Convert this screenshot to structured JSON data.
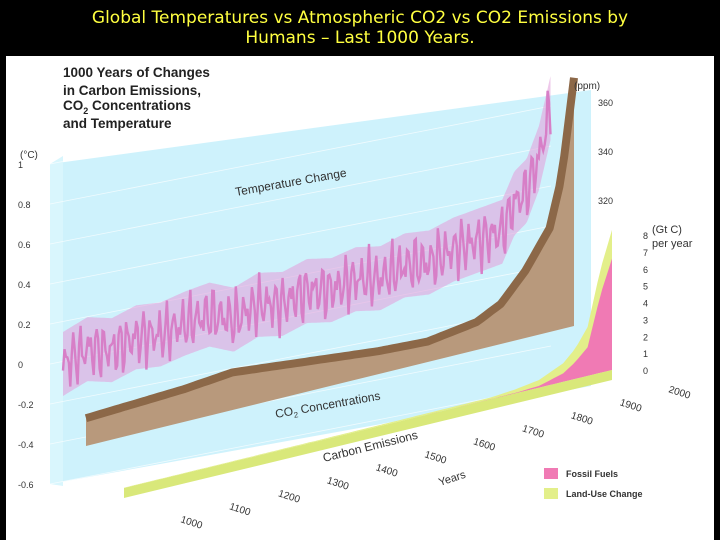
{
  "header": {
    "title_line1": "Global Temperatures vs Atmospheric CO2 vs CO2 Emissions by",
    "title_line2": "Humans – Last 1000 Years."
  },
  "colors": {
    "header_bg": "#000000",
    "header_text": "#ffff40",
    "temperature": "#d77fc7",
    "co2_top": "#8c6848",
    "co2_face": "#b8997c",
    "emissions_land": "#e3ef8a",
    "emissions_fossil": "#f07ab4",
    "temp_panel": "#c6f0fb"
  },
  "chart_data": {
    "type": "area",
    "title_lines": [
      "1000 Years of Changes",
      "in Carbon Emissions,",
      "CO2 Concentrations",
      "and Temperature"
    ],
    "series_labels": {
      "temperature": "Temperature Change",
      "co2": "CO2 Concentrations",
      "emissions": "Carbon Emissions"
    },
    "x_label": "Years",
    "x_ticks": [
      "1000",
      "1100",
      "1200",
      "1300",
      "1400",
      "1500",
      "1600",
      "1700",
      "1800",
      "1900",
      "2000"
    ],
    "temperature": {
      "unit": "(°C)",
      "ticks": [
        "1",
        "0.8",
        "0.6",
        "0.4",
        "0.2",
        "0",
        "-0.2",
        "-0.4",
        "-0.6"
      ],
      "ylim": [
        -0.6,
        1.0
      ],
      "x": [
        1000,
        1050,
        1100,
        1150,
        1200,
        1250,
        1300,
        1350,
        1400,
        1450,
        1500,
        1550,
        1600,
        1650,
        1700,
        1750,
        1800,
        1850,
        1900,
        1925,
        1950,
        1975,
        2000
      ],
      "y": [
        0.0,
        0.05,
        0.02,
        0.06,
        0.05,
        0.08,
        0.1,
        0.05,
        0.1,
        0.08,
        0.12,
        0.1,
        0.13,
        0.11,
        0.15,
        0.14,
        0.18,
        0.2,
        0.22,
        0.35,
        0.4,
        0.55,
        0.8
      ]
    },
    "co2": {
      "unit": "(ppm)",
      "ticks": [
        "360",
        "340",
        "320"
      ],
      "x": [
        1000,
        1100,
        1200,
        1300,
        1400,
        1500,
        1600,
        1700,
        1800,
        1850,
        1900,
        1950,
        1975,
        2000
      ],
      "y": [
        280,
        281,
        282,
        284,
        282,
        280,
        278,
        277,
        280,
        285,
        296,
        311,
        331,
        370
      ]
    },
    "emissions": {
      "unit": "(Gt C)",
      "unit_line2": "per year",
      "ticks": [
        "8",
        "7",
        "6",
        "5",
        "4",
        "3",
        "2",
        "1",
        "0"
      ],
      "ylim": [
        0,
        8
      ],
      "x": [
        1000,
        1200,
        1400,
        1600,
        1750,
        1800,
        1850,
        1900,
        1925,
        1950,
        1975,
        2000
      ],
      "land_use_change": [
        0.02,
        0.03,
        0.05,
        0.08,
        0.1,
        0.2,
        0.35,
        0.6,
        0.8,
        1.2,
        1.5,
        1.7
      ],
      "fossil_fuels": [
        0,
        0,
        0,
        0,
        0.01,
        0.03,
        0.1,
        0.5,
        1.0,
        1.7,
        4.5,
        6.6
      ]
    },
    "legend": [
      {
        "label": "Fossil Fuels",
        "color": "#f07ab4"
      },
      {
        "label": "Land-Use Change",
        "color": "#e3ef8a"
      }
    ],
    "legend_position": "bottom-right"
  }
}
